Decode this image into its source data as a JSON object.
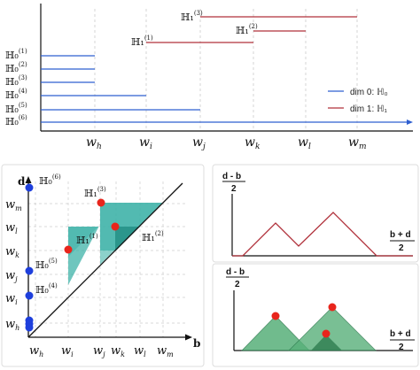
{
  "colors": {
    "dim0": "#2f5fd0",
    "dim1": "#b0303a",
    "teal": "#3fb3a8",
    "tealDark": "#1f8a80",
    "green": "#58b07a",
    "greenDark": "#2e7d4f",
    "point_red": "#e8251c",
    "point_blue": "#1e3fdc"
  },
  "barcode": {
    "x_ticks": [
      "w_h",
      "w_i",
      "w_j",
      "w_k",
      "w_l",
      "w_m"
    ],
    "legend": [
      {
        "label": "dim 0: ℍ₀",
        "color": "#2f5fd0"
      },
      {
        "label": "dim 1: ℍ₁",
        "color": "#b0303a"
      }
    ],
    "h0_bars": [
      {
        "label": "ℍ₀",
        "sup": "(1)",
        "start": "-inf",
        "end": "w_h"
      },
      {
        "label": "ℍ₀",
        "sup": "(2)",
        "start": "-inf",
        "end": "w_h"
      },
      {
        "label": "ℍ₀",
        "sup": "(3)",
        "start": "-inf",
        "end": "w_h"
      },
      {
        "label": "ℍ₀",
        "sup": "(4)",
        "start": "-inf",
        "end": "w_i"
      },
      {
        "label": "ℍ₀",
        "sup": "(5)",
        "start": "-inf",
        "end": "w_j"
      },
      {
        "label": "ℍ₀",
        "sup": "(6)",
        "start": "-inf",
        "end": "inf"
      }
    ],
    "h1_bars": [
      {
        "label": "ℍ₁",
        "sup": "(1)",
        "start": "w_i",
        "end": "w_k"
      },
      {
        "label": "ℍ₁",
        "sup": "(2)",
        "start": "w_k",
        "end": "w_l"
      },
      {
        "label": "ℍ₁",
        "sup": "(3)",
        "start": "w_j",
        "end": "w_m"
      }
    ]
  },
  "diagram": {
    "x_axis": "b",
    "y_axis": "d",
    "x_ticks": [
      "w_h",
      "w_i",
      "w_j",
      "w_k",
      "w_l",
      "w_m"
    ],
    "y_ticks": [
      "w_m",
      "w_l",
      "w_k",
      "w_j",
      "w_i",
      "w_h"
    ],
    "labels": [
      {
        "text": "ℍ₀",
        "sup": "(6)"
      },
      {
        "text": "ℍ₁",
        "sup": "(3)"
      },
      {
        "text": "ℍ₁",
        "sup": "(1)"
      },
      {
        "text": "ℍ₁",
        "sup": "(2)"
      },
      {
        "text": "ℍ₀",
        "sup": "(5)"
      },
      {
        "text": "ℍ₀",
        "sup": "(4)"
      }
    ]
  },
  "landscape_top": {
    "y_label": "d - b",
    "y_den": "2",
    "x_label": "b + d",
    "x_den": "2"
  },
  "landscape_bottom": {
    "y_label": "d - b",
    "y_den": "2",
    "x_label": "b + d",
    "x_den": "2"
  }
}
